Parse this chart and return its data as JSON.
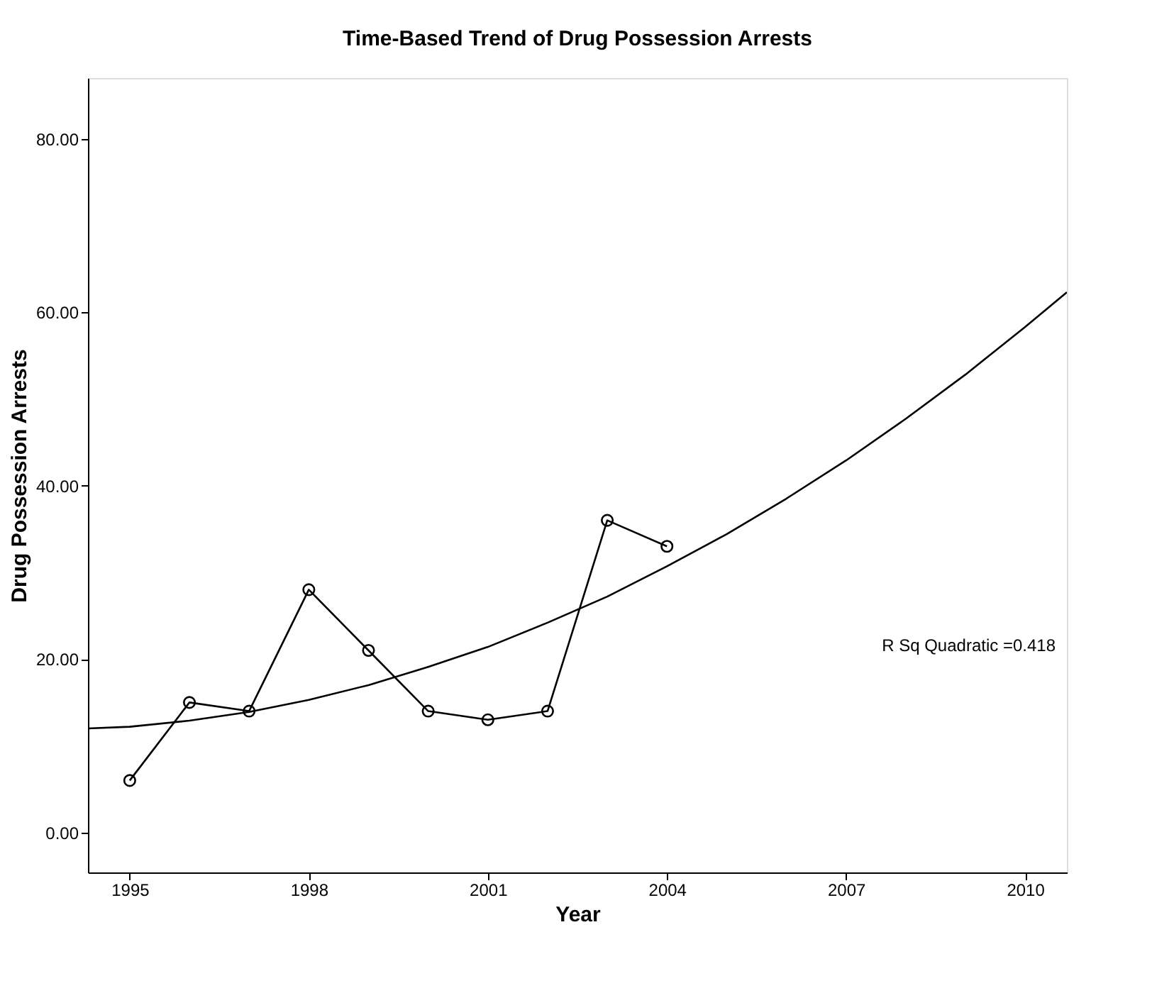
{
  "chart_data": {
    "type": "line",
    "title": "Time-Based Trend of Drug Possession Arrests",
    "xlabel": "Year",
    "ylabel": "Drug Possession Arrests",
    "x": [
      1995,
      1996,
      1997,
      1998,
      1999,
      2000,
      2001,
      2002,
      2003,
      2004
    ],
    "series": [
      {
        "color": "#000000",
        "values": [
          6,
          15,
          14,
          28,
          21,
          14,
          13,
          14,
          36,
          33
        ]
      },
      {
        "type": "line",
        "marker": "none",
        "color": "#000000",
        "x": [
          1994.3,
          1995,
          1996,
          1997,
          1998,
          1999,
          2000,
          2001,
          2002,
          2003,
          2004,
          2005,
          2006,
          2007,
          2008,
          2009,
          2010,
          2010.7
        ],
        "values": [
          12.0,
          12.2,
          12.9,
          13.9,
          15.3,
          17.0,
          19.1,
          21.4,
          24.2,
          27.2,
          30.7,
          34.4,
          38.5,
          42.9,
          47.7,
          52.8,
          58.3,
          62.3
        ]
      }
    ],
    "marker": "circle",
    "grid": false,
    "xlim": [
      1994.3,
      2010.7
    ],
    "xticks": [
      1995,
      1998,
      2001,
      2004,
      2007,
      2010
    ],
    "ylim": [
      -4.6,
      87
    ],
    "yticks": [
      {
        "value": 0,
        "label": "0.00"
      },
      {
        "value": 20,
        "label": "20.00"
      },
      {
        "value": 40,
        "label": "40.00"
      },
      {
        "value": 60,
        "label": "60.00"
      },
      {
        "value": 80,
        "label": "80.00"
      }
    ],
    "annotations": [
      "R Sq Quadratic =0.418"
    ]
  }
}
